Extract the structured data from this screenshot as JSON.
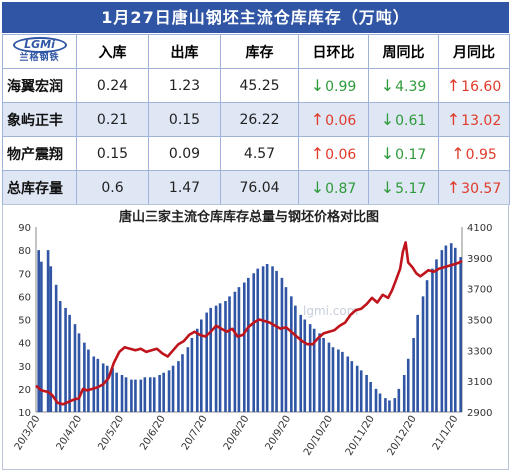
{
  "header": {
    "title": "1月27日唐山钢坯主流仓库库存（万吨）"
  },
  "logo": {
    "text": "LGMi",
    "subtext": "兰格钢铁"
  },
  "table": {
    "columns": [
      "入库",
      "出库",
      "库存",
      "日环比",
      "周同比",
      "月同比"
    ],
    "rows": [
      {
        "name": "海翼宏润",
        "in": "0.24",
        "out": "1.23",
        "stock": "45.25",
        "dod": {
          "dir": "down",
          "value": "0.99"
        },
        "wow": {
          "dir": "down",
          "value": "4.39"
        },
        "mom": {
          "dir": "up",
          "value": "16.60"
        }
      },
      {
        "name": "象屿正丰",
        "in": "0.21",
        "out": "0.15",
        "stock": "26.22",
        "dod": {
          "dir": "up",
          "value": "0.06"
        },
        "wow": {
          "dir": "down",
          "value": "0.61"
        },
        "mom": {
          "dir": "up",
          "value": "13.02"
        }
      },
      {
        "name": "物产震翔",
        "in": "0.15",
        "out": "0.09",
        "stock": "4.57",
        "dod": {
          "dir": "up",
          "value": "0.06"
        },
        "wow": {
          "dir": "down",
          "value": "0.17"
        },
        "mom": {
          "dir": "up",
          "value": "0.95"
        }
      },
      {
        "name": "总库存量",
        "in": "0.6",
        "out": "1.47",
        "stock": "76.04",
        "dod": {
          "dir": "down",
          "value": "0.87"
        },
        "wow": {
          "dir": "down",
          "value": "5.17"
        },
        "mom": {
          "dir": "up",
          "value": "30.57"
        }
      }
    ],
    "colors": {
      "up": "#e03a2a",
      "down": "#2e9a3a"
    }
  },
  "chart_data": {
    "type": "bar",
    "title": "唐山三家主流仓库库存总量与钢坯价格对比图",
    "watermark": "lgmi.com",
    "x_tick_labels": [
      "20/3/20",
      "20/4/20",
      "20/5/20",
      "20/6/20",
      "20/7/20",
      "20/8/20",
      "20/9/20",
      "20/10/20",
      "20/11/20",
      "20/12/20",
      "21/1/20"
    ],
    "y_left": {
      "min": 10,
      "max": 90,
      "ticks": [
        10,
        20,
        30,
        40,
        50,
        60,
        70,
        80,
        90
      ]
    },
    "y_right": {
      "min": 2900,
      "max": 4100,
      "ticks": [
        2900,
        3100,
        3300,
        3500,
        3700,
        3900,
        4100
      ]
    },
    "x_range": [
      "2020-03-16",
      "2021-01-27"
    ],
    "series": [
      {
        "type": "bar",
        "axis": "left",
        "color": "#2f55a4",
        "points": [
          [
            "2020-03-18",
            80
          ],
          [
            "2020-03-20",
            75
          ],
          [
            "2020-03-25",
            80
          ],
          [
            "2020-03-27",
            73
          ],
          [
            "2020-03-31",
            65
          ],
          [
            "2020-04-03",
            58
          ],
          [
            "2020-04-07",
            55
          ],
          [
            "2020-04-10",
            52
          ],
          [
            "2020-04-14",
            48
          ],
          [
            "2020-04-17",
            44
          ],
          [
            "2020-04-21",
            40
          ],
          [
            "2020-04-24",
            37
          ],
          [
            "2020-04-28",
            34
          ],
          [
            "2020-05-01",
            33
          ],
          [
            "2020-05-05",
            31
          ],
          [
            "2020-05-08",
            30
          ],
          [
            "2020-05-12",
            29
          ],
          [
            "2020-05-15",
            27
          ],
          [
            "2020-05-19",
            26
          ],
          [
            "2020-05-22",
            25
          ],
          [
            "2020-05-26",
            24
          ],
          [
            "2020-05-29",
            24
          ],
          [
            "2020-06-02",
            24
          ],
          [
            "2020-06-05",
            25
          ],
          [
            "2020-06-09",
            25
          ],
          [
            "2020-06-12",
            25
          ],
          [
            "2020-06-16",
            26
          ],
          [
            "2020-06-19",
            27
          ],
          [
            "2020-06-23",
            28
          ],
          [
            "2020-06-26",
            30
          ],
          [
            "2020-06-30",
            32
          ],
          [
            "2020-07-03",
            35
          ],
          [
            "2020-07-07",
            38
          ],
          [
            "2020-07-10",
            42
          ],
          [
            "2020-07-14",
            46
          ],
          [
            "2020-07-17",
            50
          ],
          [
            "2020-07-21",
            53
          ],
          [
            "2020-07-24",
            55
          ],
          [
            "2020-07-28",
            56
          ],
          [
            "2020-07-31",
            57
          ],
          [
            "2020-08-04",
            58
          ],
          [
            "2020-08-07",
            60
          ],
          [
            "2020-08-11",
            62
          ],
          [
            "2020-08-14",
            64
          ],
          [
            "2020-08-18",
            66
          ],
          [
            "2020-08-21",
            68
          ],
          [
            "2020-08-25",
            70
          ],
          [
            "2020-08-28",
            72
          ],
          [
            "2020-09-01",
            73
          ],
          [
            "2020-09-04",
            74
          ],
          [
            "2020-09-08",
            73
          ],
          [
            "2020-09-11",
            71
          ],
          [
            "2020-09-15",
            68
          ],
          [
            "2020-09-18",
            64
          ],
          [
            "2020-09-22",
            60
          ],
          [
            "2020-09-25",
            56
          ],
          [
            "2020-09-29",
            52
          ],
          [
            "2020-10-02",
            50
          ],
          [
            "2020-10-06",
            48
          ],
          [
            "2020-10-09",
            46
          ],
          [
            "2020-10-13",
            44
          ],
          [
            "2020-10-16",
            42
          ],
          [
            "2020-10-20",
            40
          ],
          [
            "2020-10-23",
            38
          ],
          [
            "2020-10-27",
            37
          ],
          [
            "2020-10-30",
            36
          ],
          [
            "2020-11-03",
            34
          ],
          [
            "2020-11-06",
            32
          ],
          [
            "2020-11-10",
            30
          ],
          [
            "2020-11-13",
            28
          ],
          [
            "2020-11-17",
            26
          ],
          [
            "2020-11-20",
            23
          ],
          [
            "2020-11-24",
            20
          ],
          [
            "2020-11-27",
            18
          ],
          [
            "2020-12-01",
            16
          ],
          [
            "2020-12-04",
            15
          ],
          [
            "2020-12-08",
            16
          ],
          [
            "2020-12-11",
            20
          ],
          [
            "2020-12-15",
            26
          ],
          [
            "2020-12-18",
            33
          ],
          [
            "2020-12-22",
            42
          ],
          [
            "2020-12-25",
            52
          ],
          [
            "2020-12-29",
            60
          ],
          [
            "2021-01-01",
            67
          ],
          [
            "2021-01-05",
            72
          ],
          [
            "2021-01-08",
            76
          ],
          [
            "2021-01-12",
            80
          ],
          [
            "2021-01-15",
            82
          ],
          [
            "2021-01-19",
            83
          ],
          [
            "2021-01-22",
            81
          ],
          [
            "2021-01-26",
            77
          ]
        ]
      },
      {
        "type": "line",
        "axis": "right",
        "color": "#c0141c",
        "points": [
          [
            "2020-03-16",
            3070
          ],
          [
            "2020-03-20",
            3040
          ],
          [
            "2020-03-25",
            3030
          ],
          [
            "2020-03-28",
            3010
          ],
          [
            "2020-04-01",
            2960
          ],
          [
            "2020-04-05",
            2950
          ],
          [
            "2020-04-09",
            2965
          ],
          [
            "2020-04-13",
            2980
          ],
          [
            "2020-04-17",
            2990
          ],
          [
            "2020-04-20",
            3050
          ],
          [
            "2020-04-23",
            3040
          ],
          [
            "2020-04-27",
            3050
          ],
          [
            "2020-05-01",
            3060
          ],
          [
            "2020-05-05",
            3080
          ],
          [
            "2020-05-09",
            3120
          ],
          [
            "2020-05-13",
            3220
          ],
          [
            "2020-05-17",
            3290
          ],
          [
            "2020-05-21",
            3320
          ],
          [
            "2020-05-25",
            3310
          ],
          [
            "2020-05-29",
            3300
          ],
          [
            "2020-06-02",
            3310
          ],
          [
            "2020-06-06",
            3290
          ],
          [
            "2020-06-10",
            3300
          ],
          [
            "2020-06-14",
            3310
          ],
          [
            "2020-06-18",
            3280
          ],
          [
            "2020-06-22",
            3260
          ],
          [
            "2020-06-26",
            3300
          ],
          [
            "2020-06-30",
            3340
          ],
          [
            "2020-07-04",
            3360
          ],
          [
            "2020-07-08",
            3400
          ],
          [
            "2020-07-12",
            3420
          ],
          [
            "2020-07-16",
            3400
          ],
          [
            "2020-07-20",
            3390
          ],
          [
            "2020-07-24",
            3420
          ],
          [
            "2020-07-28",
            3460
          ],
          [
            "2020-08-01",
            3440
          ],
          [
            "2020-08-05",
            3420
          ],
          [
            "2020-08-09",
            3440
          ],
          [
            "2020-08-13",
            3390
          ],
          [
            "2020-08-17",
            3400
          ],
          [
            "2020-08-21",
            3450
          ],
          [
            "2020-08-25",
            3480
          ],
          [
            "2020-08-29",
            3500
          ],
          [
            "2020-09-02",
            3490
          ],
          [
            "2020-09-06",
            3480
          ],
          [
            "2020-09-10",
            3460
          ],
          [
            "2020-09-14",
            3440
          ],
          [
            "2020-09-18",
            3450
          ],
          [
            "2020-09-22",
            3420
          ],
          [
            "2020-09-26",
            3390
          ],
          [
            "2020-09-30",
            3360
          ],
          [
            "2020-10-04",
            3340
          ],
          [
            "2020-10-08",
            3340
          ],
          [
            "2020-10-12",
            3380
          ],
          [
            "2020-10-16",
            3410
          ],
          [
            "2020-10-20",
            3420
          ],
          [
            "2020-10-24",
            3430
          ],
          [
            "2020-10-28",
            3460
          ],
          [
            "2020-11-01",
            3480
          ],
          [
            "2020-11-05",
            3530
          ],
          [
            "2020-11-09",
            3560
          ],
          [
            "2020-11-13",
            3570
          ],
          [
            "2020-11-17",
            3600
          ],
          [
            "2020-11-21",
            3640
          ],
          [
            "2020-11-25",
            3610
          ],
          [
            "2020-11-29",
            3660
          ],
          [
            "2020-12-03",
            3640
          ],
          [
            "2020-12-06",
            3690
          ],
          [
            "2020-12-09",
            3760
          ],
          [
            "2020-12-12",
            3830
          ],
          [
            "2020-12-14",
            3940
          ],
          [
            "2020-12-16",
            4000
          ],
          [
            "2020-12-18",
            3870
          ],
          [
            "2020-12-21",
            3840
          ],
          [
            "2020-12-24",
            3800
          ],
          [
            "2020-12-27",
            3780
          ],
          [
            "2020-12-30",
            3800
          ],
          [
            "2021-01-02",
            3820
          ],
          [
            "2021-01-06",
            3810
          ],
          [
            "2021-01-10",
            3830
          ],
          [
            "2021-01-14",
            3840
          ],
          [
            "2021-01-18",
            3850
          ],
          [
            "2021-01-22",
            3860
          ],
          [
            "2021-01-25",
            3870
          ],
          [
            "2021-01-27",
            3880
          ]
        ]
      }
    ]
  }
}
